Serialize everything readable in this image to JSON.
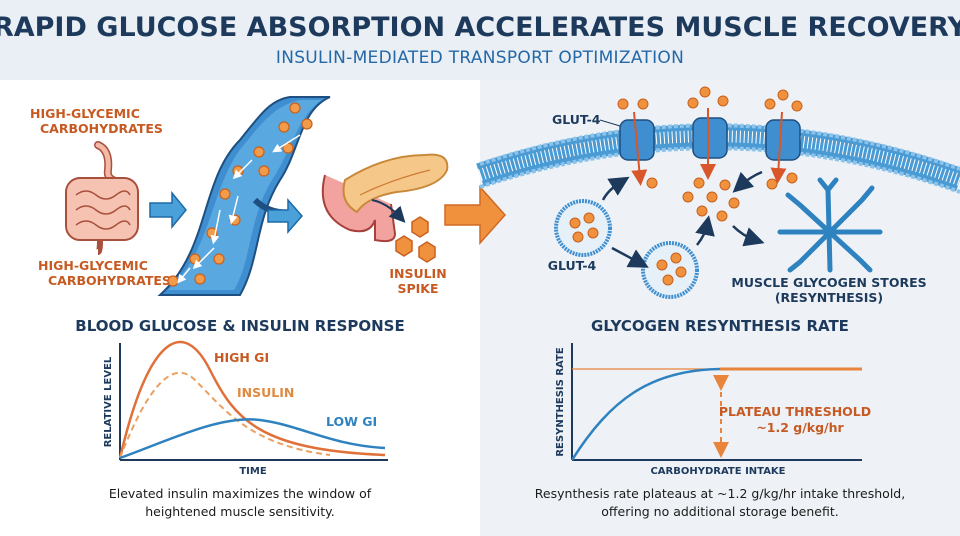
{
  "header": {
    "title": "RAPID GLUCOSE ABSORPTION ACCELERATES MUSCLE RECOVERY",
    "subtitle": "INSULIN-MEDIATED TRANSPORT OPTIMIZATION"
  },
  "left_panel": {
    "gut_label_top": [
      "HIGH-GLYCEMIC",
      "CARBOHYDRATES"
    ],
    "gut_label_bottom": [
      "HIGH-GLYCEMIC",
      "CARBOHYDRATES"
    ],
    "pancreas_label": [
      "INSULIN",
      "SPIKE"
    ]
  },
  "right_panel": {
    "glut4_membrane_label": "GLUT-4",
    "glut4_vesicle_label": "GLUT-4",
    "glycogen_label": [
      "MUSCLE GLYCOGEN STORES",
      "(RESYNTHESIS)"
    ]
  },
  "chart_left": {
    "title": "BLOOD GLUCOSE & INSULIN RESPONSE",
    "ylabel": "RELATIVE LEVEL",
    "xlabel": "TIME",
    "series": [
      {
        "name": "HIGH GI",
        "color": "#e0703a",
        "style": "solid"
      },
      {
        "name": "INSULIN",
        "color": "#eaa060",
        "style": "dashed"
      },
      {
        "name": "LOW GI",
        "color": "#2f82c0",
        "style": "solid"
      }
    ],
    "caption": [
      "Elevated insulin maximizes the window of",
      "heightened muscle sensitivity."
    ]
  },
  "chart_right": {
    "title": "GLYCOGEN RESYNTHESIS RATE",
    "ylabel": "RESYNTHESIS RATE",
    "xlabel": "CARBOHYDRATE INTAKE",
    "annotation": [
      "PLATEAU THRESHOLD",
      "~1.2 g/kg/hr"
    ],
    "caption": [
      "Resynthesis rate plateaus at ~1.2 g/kg/hr intake threshold,",
      "offering no additional storage benefit."
    ]
  },
  "colors": {
    "navy": "#1d3a5c",
    "blue": "#2f82c0",
    "orange": "#e8843c",
    "header_bg": "#e9eff4",
    "right_bg": "#eef2f6"
  }
}
